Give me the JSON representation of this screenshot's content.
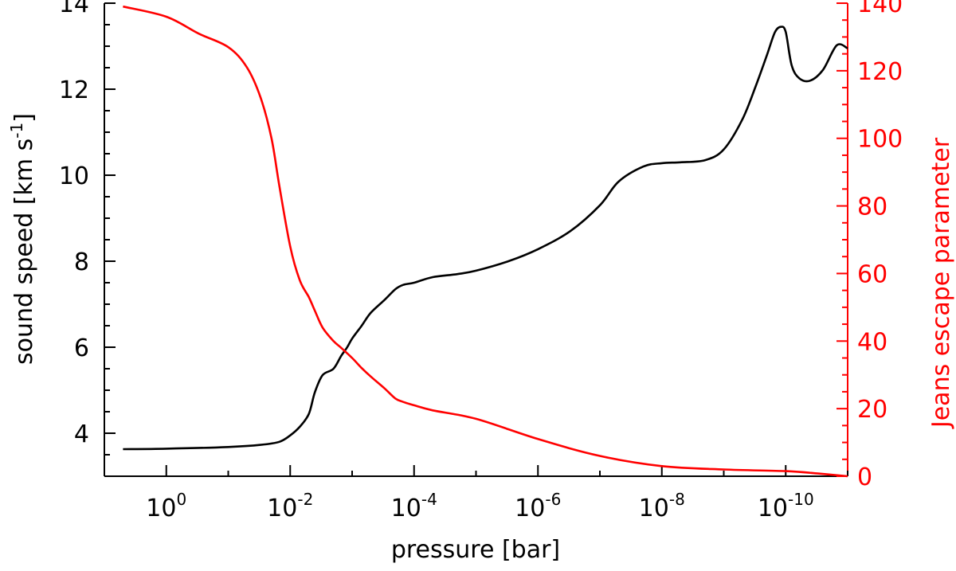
{
  "chart_data": {
    "type": "line",
    "xlabel": "pressure [bar]",
    "ylabel_left": "sound speed [km s",
    "ylabel_left_unit_exp": "-1",
    "ylabel_left_close": "]",
    "ylabel_right": "Jeans escape parameter",
    "x_scale": "log",
    "x_reversed": true,
    "xlim": [
      10,
      1e-11
    ],
    "ylim_left": [
      3,
      14
    ],
    "ylim_right": [
      0,
      140
    ],
    "grid": false,
    "x_ticks": [
      {
        "base": "10",
        "exp": "0"
      },
      {
        "base": "10",
        "exp": "-2"
      },
      {
        "base": "10",
        "exp": "-4"
      },
      {
        "base": "10",
        "exp": "-6"
      },
      {
        "base": "10",
        "exp": "-8"
      },
      {
        "base": "10",
        "exp": "-10"
      }
    ],
    "left_ticks": [
      "4",
      "6",
      "8",
      "10",
      "12",
      "14"
    ],
    "right_ticks": [
      "0",
      "20",
      "40",
      "60",
      "80",
      "100",
      "120",
      "140"
    ],
    "colors": {
      "sound_speed": "#000000",
      "jeans": "#ff0000",
      "axis": "#000000",
      "right_axis": "#ff0000"
    },
    "series": [
      {
        "axis": "left",
        "x": [
          5,
          1,
          0.1,
          0.03,
          0.015,
          0.01,
          0.007,
          0.005,
          0.004,
          0.003,
          0.002,
          0.0015,
          0.0012,
          0.001,
          0.0007,
          0.0005,
          0.0003,
          0.0002,
          0.00015,
          0.0001,
          5e-05,
          2e-05,
          1e-05,
          3e-06,
          1e-06,
          3e-07,
          1e-07,
          5e-08,
          2e-08,
          1e-08,
          5e-09,
          2e-09,
          1e-09,
          5e-10,
          3e-10,
          2e-10,
          1.5e-10,
          1.2e-10,
          1e-10,
          8e-11,
          6e-11,
          4e-11,
          2.5e-11,
          1.5e-11,
          1e-11
        ],
        "values": [
          3.63,
          3.64,
          3.68,
          3.73,
          3.8,
          3.95,
          4.15,
          4.45,
          4.95,
          5.35,
          5.5,
          5.8,
          6.0,
          6.2,
          6.5,
          6.8,
          7.1,
          7.35,
          7.45,
          7.5,
          7.63,
          7.7,
          7.78,
          8.0,
          8.28,
          8.7,
          9.3,
          9.85,
          10.2,
          10.28,
          10.3,
          10.35,
          10.6,
          11.3,
          12.1,
          12.8,
          13.32,
          13.45,
          13.33,
          12.55,
          12.25,
          12.2,
          12.45,
          13.02,
          12.95
        ]
      },
      {
        "axis": "right",
        "x": [
          5,
          1,
          0.3,
          0.1,
          0.05,
          0.03,
          0.02,
          0.015,
          0.01,
          0.007,
          0.005,
          0.004,
          0.003,
          0.002,
          0.0015,
          0.001,
          0.0007,
          0.0005,
          0.0003,
          0.0002,
          0.00015,
          0.0001,
          5e-05,
          1e-05,
          1e-06,
          1e-07,
          1e-08,
          1e-09,
          1e-10,
          3e-11,
          1e-11
        ],
        "values": [
          139,
          136,
          131,
          127,
          121,
          112,
          100,
          86,
          68,
          58,
          53,
          49,
          44,
          40,
          38,
          35,
          32,
          29.5,
          26,
          23,
          22,
          21,
          19.5,
          17,
          11,
          6,
          3,
          2,
          1.5,
          0.8,
          0
        ]
      }
    ]
  }
}
